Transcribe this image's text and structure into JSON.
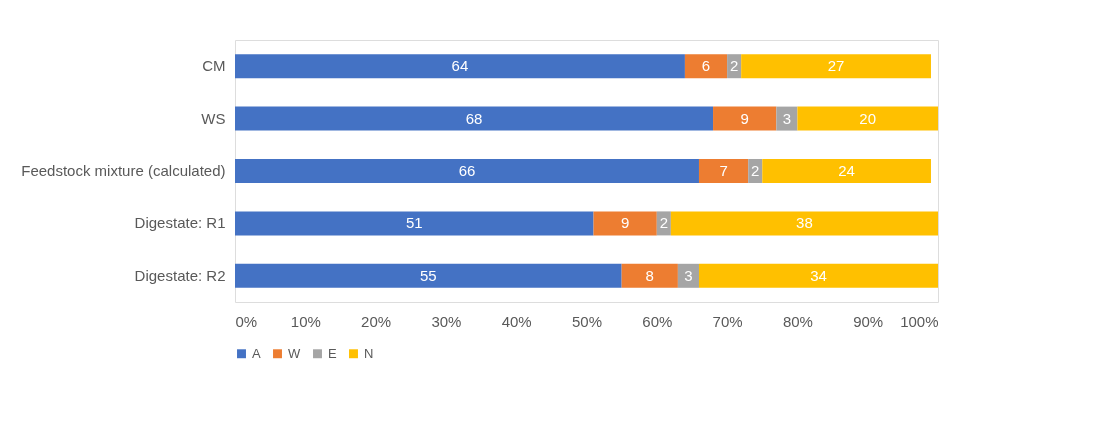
{
  "chart_data": {
    "type": "bar",
    "orientation": "horizontal",
    "stacked": true,
    "categories": [
      "CM",
      "WS",
      "Feedstock mixture (calculated)",
      "Digestate: R1",
      "Digestate: R2"
    ],
    "series": [
      {
        "name": "A",
        "color": "#4472c4",
        "values": [
          64,
          68,
          66,
          51,
          55
        ]
      },
      {
        "name": "W",
        "color": "#ed7d31",
        "values": [
          6,
          9,
          7,
          9,
          8
        ]
      },
      {
        "name": "E",
        "color": "#a5a5a5",
        "values": [
          2,
          3,
          2,
          2,
          3
        ]
      },
      {
        "name": "N",
        "color": "#ffc000",
        "values": [
          27,
          20,
          24,
          38,
          34
        ]
      }
    ],
    "xlim": [
      0,
      100
    ],
    "xticks": [
      {
        "value": 0,
        "label": "0%"
      },
      {
        "value": 10,
        "label": "10%"
      },
      {
        "value": 20,
        "label": "20%"
      },
      {
        "value": 30,
        "label": "30%"
      },
      {
        "value": 40,
        "label": "40%"
      },
      {
        "value": 50,
        "label": "50%"
      },
      {
        "value": 60,
        "label": "60%"
      },
      {
        "value": 70,
        "label": "70%"
      },
      {
        "value": 80,
        "label": "80%"
      },
      {
        "value": 90,
        "label": "90%"
      },
      {
        "value": 100,
        "label": "100%"
      }
    ],
    "data_labels": true,
    "grid": false,
    "legend": "bottom"
  }
}
